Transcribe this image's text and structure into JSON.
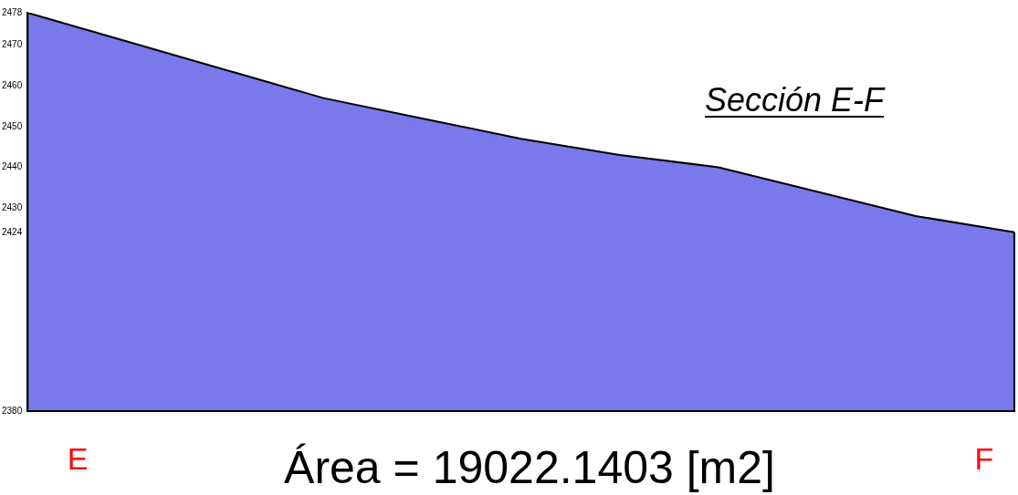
{
  "chart_data": {
    "type": "area",
    "title": "Sección E-F",
    "categories": [
      null,
      null,
      null,
      null,
      null,
      null,
      null,
      null,
      null,
      null,
      null
    ],
    "series": [
      {
        "color": "#1f1fe0",
        "values": [
          2478,
          2471,
          2464,
          2457,
          2452,
          2447,
          2443,
          2440,
          2434,
          2428,
          2424
        ]
      }
    ],
    "ylim": [
      2380,
      2478
    ],
    "yticks": [
      2380,
      2424,
      2430,
      2440,
      2450,
      2460,
      2470,
      2478
    ],
    "tick_labels": "y",
    "grid": false,
    "legend": false,
    "annotations": [
      "E",
      "Área = 19022.1403 [m2]",
      "F"
    ]
  }
}
